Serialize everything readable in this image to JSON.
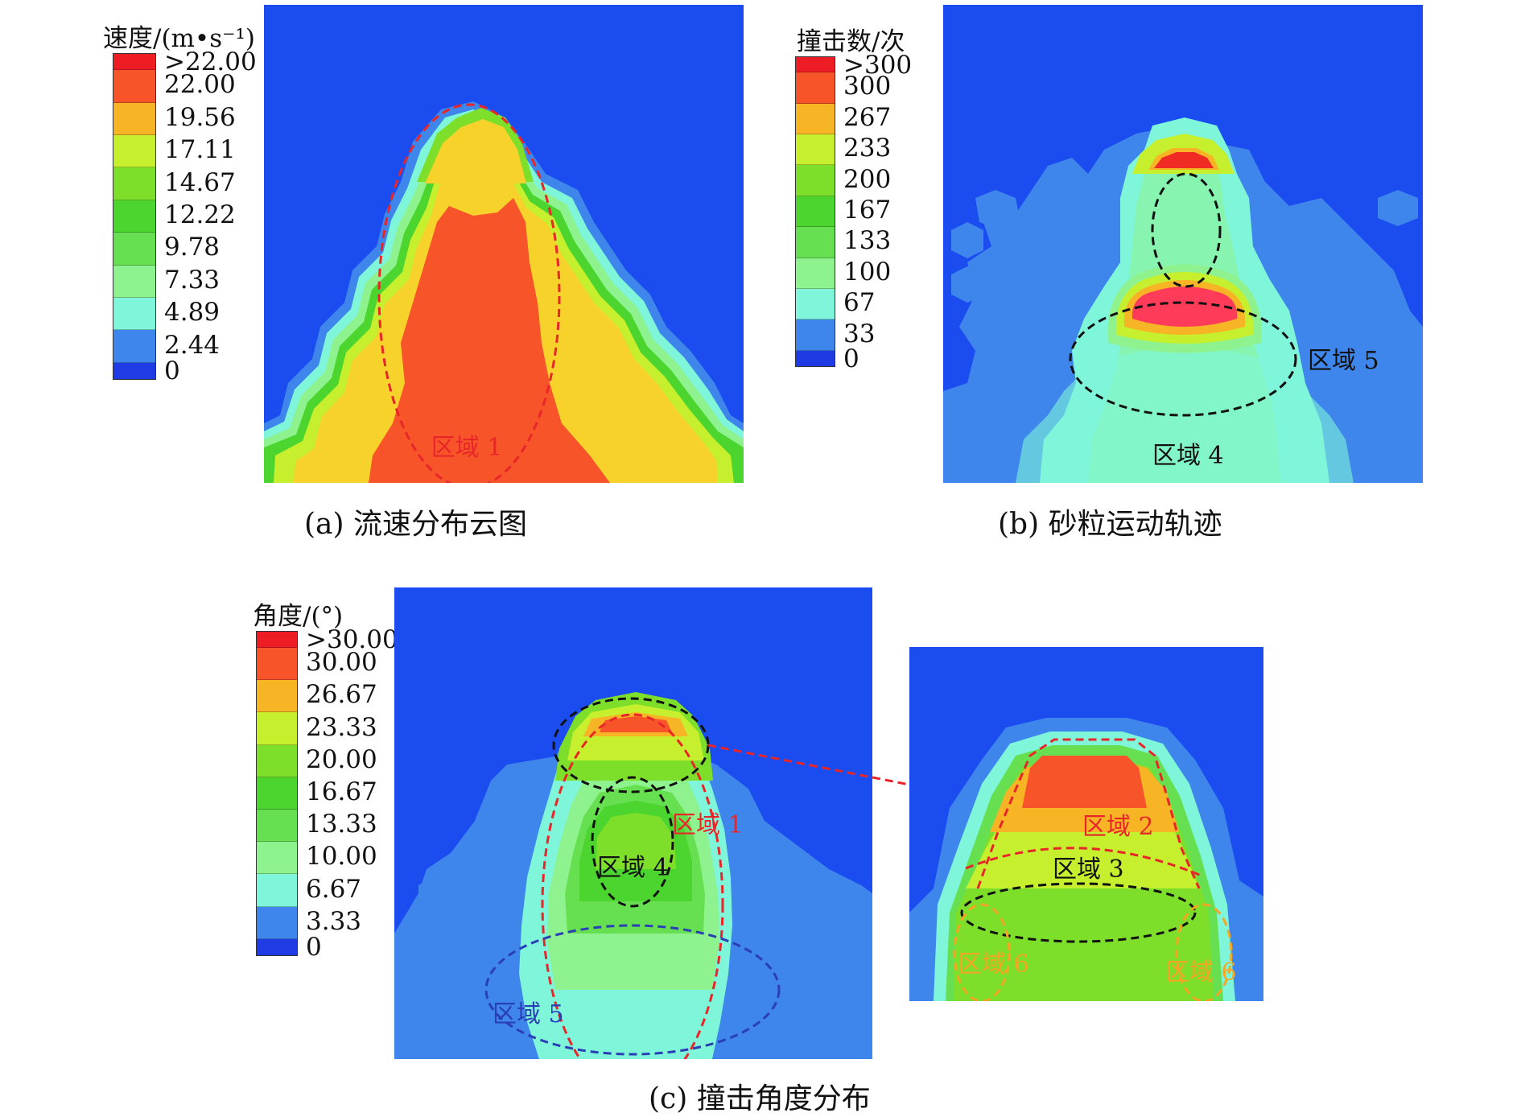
{
  "panels": {
    "a": {
      "caption": "(a) 流速分布云图",
      "legend_title": "速度/(m•s⁻¹)",
      "legend_labels": [
        ">22.00",
        "22.00",
        "19.56",
        "17.11",
        "14.67",
        "12.22",
        "9.78",
        "7.33",
        "4.89",
        "2.44",
        "0"
      ],
      "region_labels": [
        "区域 1"
      ]
    },
    "b": {
      "caption": "(b) 砂粒运动轨迹",
      "legend_title": "撞击数/次",
      "legend_labels": [
        ">300",
        "300",
        "267",
        "233",
        "200",
        "167",
        "133",
        "100",
        "67",
        "33",
        "0"
      ],
      "region_labels": [
        "区域 5",
        "区域 4"
      ]
    },
    "c": {
      "caption": "(c) 撞击角度分布",
      "legend_title": "角度/(°)",
      "legend_labels": [
        ">30.00",
        "30.00",
        "26.67",
        "23.33",
        "20.00",
        "16.67",
        "13.33",
        "10.00",
        "6.67",
        "3.33",
        "0"
      ],
      "region_labels": [
        "区域 1",
        "区域 4",
        "区域 5"
      ],
      "zoom_region_labels": [
        "区域 2",
        "区域 3",
        "区域 6",
        "区域 6"
      ]
    }
  },
  "colors": {
    "scale": [
      "#ee1c25",
      "#f7542a",
      "#f7b526",
      "#c6ef2d",
      "#7ddf2a",
      "#4cd52e",
      "#66e050",
      "#8ef28e",
      "#7ff5da",
      "#3e85ec",
      "#1e3be4"
    ],
    "background": "#1a4cf0",
    "red_dash": "#e8262a",
    "black_dash": "#111111",
    "blue_dash": "#2a3fb5",
    "orange_dash": "#f5a623"
  }
}
